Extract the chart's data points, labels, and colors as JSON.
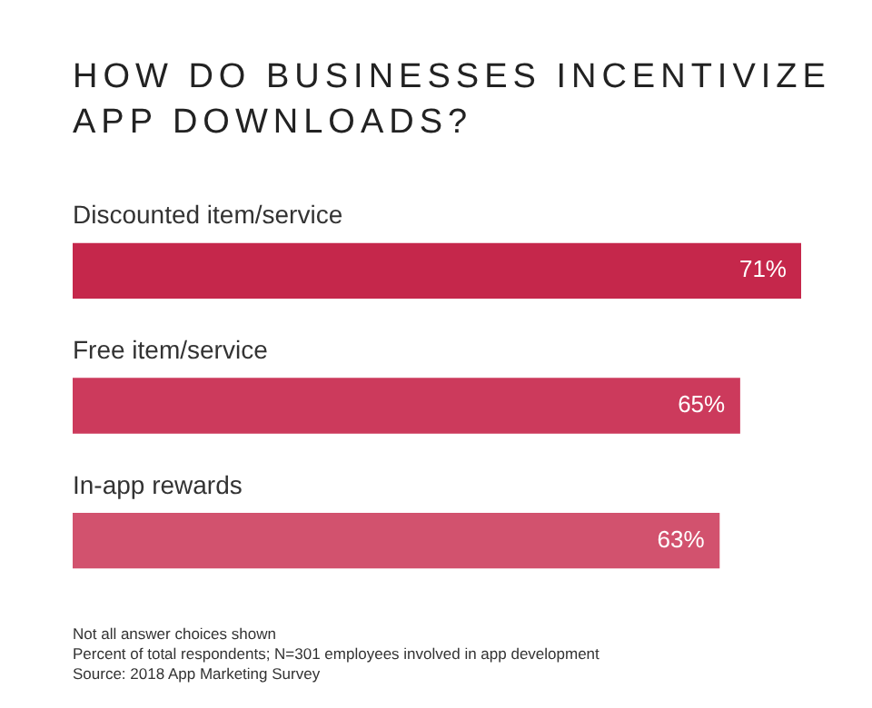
{
  "chart_data": {
    "type": "bar",
    "orientation": "horizontal",
    "title": "HOW DO BUSINESSES INCENTIVIZE APP DOWNLOADS?",
    "categories": [
      "Discounted item/service",
      "Free item/service",
      "In-app rewards"
    ],
    "values": [
      71,
      65,
      63
    ],
    "value_labels": [
      "71%",
      "65%",
      "63%"
    ],
    "colors": [
      "#c5274b",
      "#cc3a5c",
      "#d2526e"
    ],
    "xlim": [
      0,
      71
    ],
    "grid": false,
    "legend": false,
    "annotations": [
      "Not all answer choices shown",
      "Percent of total respondents; N=301 employees involved in app development",
      "Source: 2018 App Marketing Survey"
    ]
  }
}
